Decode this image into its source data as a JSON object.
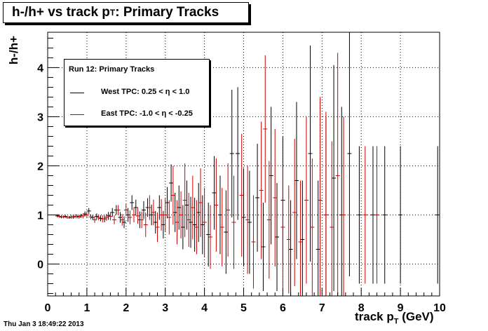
{
  "title": {
    "main": "h-/h+ vs track p",
    "sub": "T",
    "rest": ": Primary Tracks"
  },
  "ylabel": "h-/h+",
  "xlabel": {
    "main": "track p",
    "sub": "T",
    "rest": " (GeV)"
  },
  "timestamp": "Thu Jan  3 18:49:22 2013",
  "legend": {
    "header": "Run 12: Primary Tracks",
    "entries": [
      {
        "label": "West TPC: 0.25 < η < 1.0",
        "color": "#000000"
      },
      {
        "label": "East TPC: -1.0 < η < -0.25",
        "color": "#cc0000"
      }
    ]
  },
  "chart_data": {
    "type": "scatter",
    "title": "h-/h+ vs track pT: Primary Tracks",
    "xlabel": "track pT (GeV)",
    "ylabel": "h-/h+",
    "xlim": [
      0,
      10
    ],
    "ylim": [
      -0.65,
      4.72
    ],
    "x_ticks": [
      0,
      1,
      2,
      3,
      4,
      5,
      6,
      7,
      8,
      9,
      10
    ],
    "y_ticks": [
      0,
      1,
      2,
      3,
      4
    ],
    "grid": true,
    "legend_position": "top-left",
    "series": [
      {
        "name": "West TPC: 0.25 < η < 1.0",
        "color": "#000000",
        "points": [
          [
            0.25,
            0.98,
            0.03
          ],
          [
            0.35,
            0.96,
            0.03
          ],
          [
            0.45,
            0.97,
            0.03
          ],
          [
            0.55,
            0.95,
            0.03
          ],
          [
            0.65,
            0.96,
            0.04
          ],
          [
            0.75,
            0.97,
            0.04
          ],
          [
            0.85,
            0.98,
            0.04
          ],
          [
            0.95,
            1.02,
            0.05
          ],
          [
            1.05,
            1.08,
            0.06
          ],
          [
            1.15,
            0.95,
            0.05
          ],
          [
            1.25,
            0.97,
            0.06
          ],
          [
            1.35,
            0.93,
            0.06
          ],
          [
            1.45,
            0.92,
            0.07
          ],
          [
            1.55,
            0.98,
            0.08
          ],
          [
            1.65,
            1.05,
            0.09
          ],
          [
            1.75,
            1.1,
            0.1
          ],
          [
            1.85,
            0.95,
            0.11
          ],
          [
            1.95,
            0.85,
            0.12
          ],
          [
            2.05,
            1.0,
            0.14
          ],
          [
            2.15,
            1.25,
            0.15
          ],
          [
            2.25,
            1.15,
            0.16
          ],
          [
            2.35,
            0.9,
            0.17
          ],
          [
            2.45,
            1.1,
            0.18
          ],
          [
            2.55,
            1.15,
            0.19
          ],
          [
            2.65,
            1.0,
            0.21
          ],
          [
            2.75,
            0.85,
            0.23
          ],
          [
            2.85,
            1.15,
            0.25
          ],
          [
            2.95,
            0.8,
            0.28
          ],
          [
            3.05,
            1.25,
            0.32
          ],
          [
            3.15,
            1.65,
            0.38
          ],
          [
            3.25,
            1.05,
            0.4
          ],
          [
            3.35,
            1.15,
            0.45
          ],
          [
            3.45,
            0.75,
            0.45
          ],
          [
            3.55,
            1.2,
            0.5
          ],
          [
            3.65,
            0.85,
            0.52
          ],
          [
            3.75,
            0.8,
            0.55
          ],
          [
            3.85,
            1.05,
            0.6
          ],
          [
            3.95,
            0.8,
            0.6
          ],
          [
            4.1,
            0.6,
            0.65
          ],
          [
            4.25,
            1.45,
            0.75
          ],
          [
            4.4,
            1.0,
            0.8
          ],
          [
            4.55,
            0.65,
            0.85
          ],
          [
            4.7,
            2.25,
            1.3
          ],
          [
            4.85,
            2.25,
            1.35
          ],
          [
            5.0,
            0.95,
            1.0
          ],
          [
            5.15,
            0.85,
            1.05
          ],
          [
            5.35,
            1.35,
            1.1
          ],
          [
            5.5,
            0.35,
            0.9
          ],
          [
            5.7,
            1.8,
            1.4
          ],
          [
            5.85,
            0.55,
            1.1
          ],
          [
            6.0,
            1.3,
            1.3
          ],
          [
            6.2,
            0.3,
            1.0
          ],
          [
            6.35,
            1.7,
            1.6
          ],
          [
            6.5,
            0.5,
            1.2
          ],
          [
            6.7,
            2.25,
            2.2
          ],
          [
            6.9,
            0.3,
            1.4
          ],
          [
            7.1,
            1.0,
            2.0
          ],
          [
            7.3,
            1.75,
            2.3
          ],
          [
            7.5,
            1.0,
            2.2
          ],
          [
            7.7,
            2.25,
            2.5
          ],
          [
            7.95,
            1.0,
            1.4
          ],
          [
            8.3,
            1.0,
            1.4
          ],
          [
            8.6,
            1.0,
            1.4
          ],
          [
            9.0,
            1.0,
            1.4
          ],
          [
            9.95,
            1.0,
            1.4
          ]
        ]
      },
      {
        "name": "East TPC: -1.0 < η < -0.25",
        "color": "#cc0000",
        "points": [
          [
            0.3,
            0.97,
            0.03
          ],
          [
            0.4,
            0.96,
            0.03
          ],
          [
            0.5,
            0.95,
            0.03
          ],
          [
            0.6,
            0.96,
            0.04
          ],
          [
            0.7,
            0.97,
            0.04
          ],
          [
            0.8,
            0.96,
            0.04
          ],
          [
            0.9,
            0.98,
            0.05
          ],
          [
            1.0,
            1.0,
            0.05
          ],
          [
            1.1,
            0.96,
            0.05
          ],
          [
            1.2,
            0.9,
            0.06
          ],
          [
            1.3,
            0.95,
            0.06
          ],
          [
            1.4,
            0.92,
            0.07
          ],
          [
            1.5,
            0.95,
            0.07
          ],
          [
            1.6,
            0.97,
            0.08
          ],
          [
            1.7,
            0.9,
            0.09
          ],
          [
            1.8,
            1.1,
            0.1
          ],
          [
            1.9,
            0.9,
            0.12
          ],
          [
            2.0,
            1.1,
            0.13
          ],
          [
            2.1,
            0.95,
            0.14
          ],
          [
            2.2,
            1.0,
            0.15
          ],
          [
            2.3,
            0.98,
            0.16
          ],
          [
            2.4,
            0.9,
            0.17
          ],
          [
            2.5,
            0.8,
            0.25
          ],
          [
            2.6,
            1.15,
            0.25
          ],
          [
            2.7,
            1.05,
            0.26
          ],
          [
            2.8,
            0.75,
            0.3
          ],
          [
            2.9,
            1.0,
            0.32
          ],
          [
            3.0,
            1.0,
            0.35
          ],
          [
            3.1,
            0.95,
            0.35
          ],
          [
            3.2,
            1.4,
            0.6
          ],
          [
            3.3,
            0.85,
            0.45
          ],
          [
            3.4,
            1.0,
            0.48
          ],
          [
            3.5,
            1.3,
            0.75
          ],
          [
            3.6,
            0.9,
            0.55
          ],
          [
            3.7,
            1.15,
            0.65
          ],
          [
            3.8,
            0.75,
            0.55
          ],
          [
            3.9,
            1.25,
            0.7
          ],
          [
            4.0,
            0.85,
            0.7
          ],
          [
            4.15,
            0.55,
            0.65
          ],
          [
            4.3,
            1.2,
            0.95
          ],
          [
            4.45,
            0.75,
            0.8
          ],
          [
            4.6,
            1.1,
            0.95
          ],
          [
            4.75,
            0.85,
            0.95
          ],
          [
            4.95,
            1.4,
            1.25
          ],
          [
            5.1,
            0.9,
            1.1
          ],
          [
            5.25,
            0.45,
            0.95
          ],
          [
            5.45,
            1.5,
            1.4
          ],
          [
            5.55,
            2.75,
            1.5
          ],
          [
            5.65,
            0.9,
            1.2
          ],
          [
            5.8,
            1.35,
            1.4
          ],
          [
            6.0,
            0.75,
            1.25
          ],
          [
            6.15,
            0.5,
            1.1
          ],
          [
            6.3,
            1.05,
            1.5
          ],
          [
            6.45,
            0.45,
            1.25
          ],
          [
            6.6,
            1.3,
            1.7
          ],
          [
            6.75,
            0.75,
            1.4
          ],
          [
            6.95,
            1.3,
            2.1
          ],
          [
            7.1,
            1.0,
            2.1
          ],
          [
            7.25,
            0.75,
            1.75
          ],
          [
            7.4,
            1.8,
            2.5
          ],
          [
            7.55,
            1.0,
            2.0
          ],
          [
            8.1,
            1.0,
            1.4
          ],
          [
            8.4,
            1.0,
            1.4
          ]
        ]
      }
    ]
  }
}
